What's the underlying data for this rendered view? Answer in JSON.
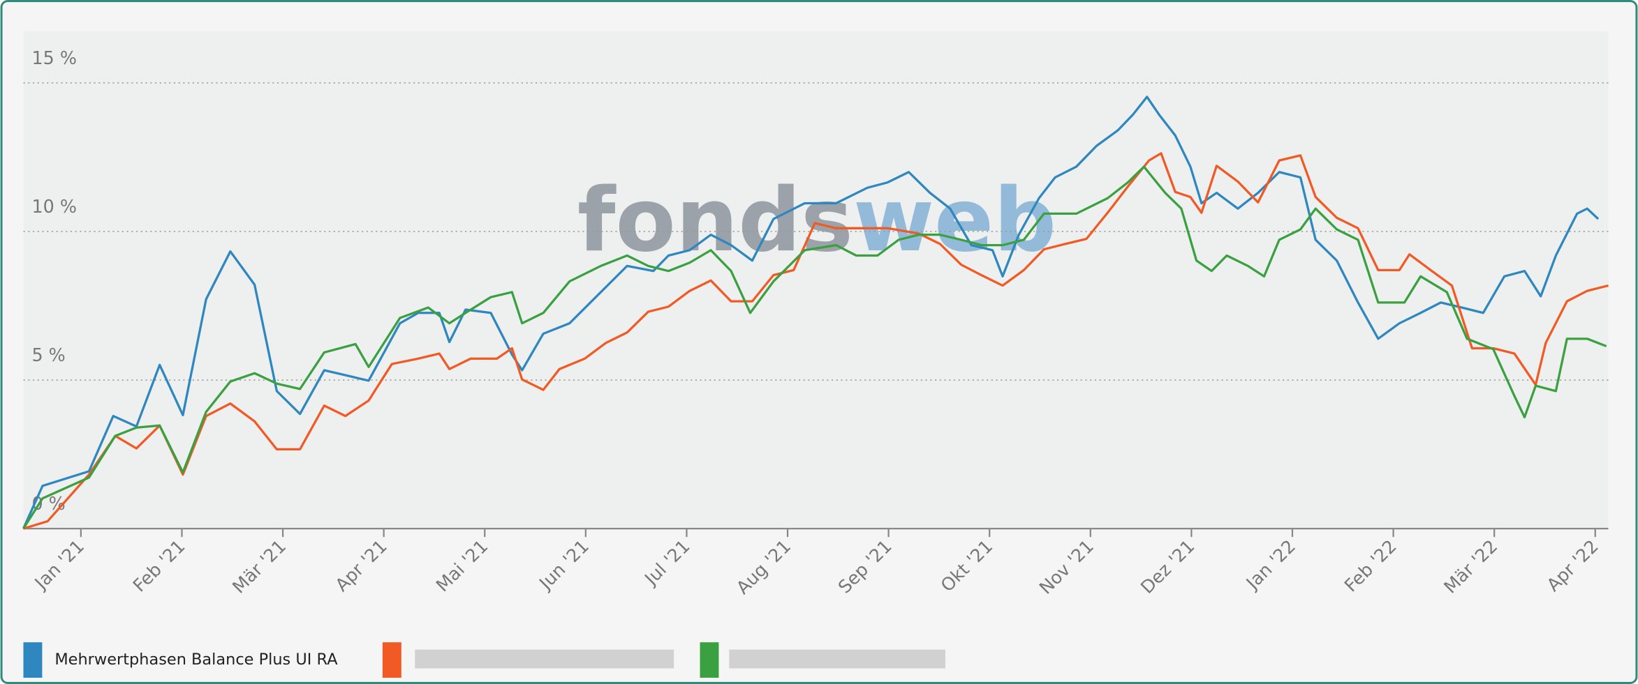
{
  "chart_data": {
    "type": "line",
    "watermark": [
      "fonds",
      "web"
    ],
    "xlim": [
      -0.57,
      15.13
    ],
    "xticks": [
      {
        "value": 0,
        "label": "Jan '21"
      },
      {
        "value": 1,
        "label": "Feb '21"
      },
      {
        "value": 2,
        "label": "Mär '21"
      },
      {
        "value": 3,
        "label": "Apr '21"
      },
      {
        "value": 4,
        "label": "Mai '21"
      },
      {
        "value": 5,
        "label": "Jun '21"
      },
      {
        "value": 6,
        "label": "Jul '21"
      },
      {
        "value": 7,
        "label": "Aug '21"
      },
      {
        "value": 8,
        "label": "Sep '21"
      },
      {
        "value": 9,
        "label": "Okt '21"
      },
      {
        "value": 10,
        "label": "Nov '21"
      },
      {
        "value": 11,
        "label": "Dez '21"
      },
      {
        "value": 12,
        "label": "Jan '22"
      },
      {
        "value": 13,
        "label": "Feb '22"
      },
      {
        "value": 14,
        "label": "Mär '22"
      },
      {
        "value": 15,
        "label": "Apr '22"
      }
    ],
    "ylim": [
      0,
      16
    ],
    "yticks": [
      {
        "value": 0,
        "label": "0 %"
      },
      {
        "value": 5,
        "label": "5 %"
      },
      {
        "value": 10,
        "label": "10 %"
      },
      {
        "value": 15,
        "label": "15 %"
      }
    ],
    "grid": true,
    "series": [
      {
        "name": "Mehrwertphasen Balance Plus UI RA",
        "color": "#2f87c0",
        "x": [
          -0.57,
          -0.38,
          0.08,
          0.32,
          0.55,
          0.78,
          1.01,
          1.24,
          1.48,
          1.72,
          1.94,
          2.17,
          2.41,
          2.85,
          3.16,
          3.34,
          3.55,
          3.65,
          3.81,
          4.06,
          4.27,
          4.37,
          4.58,
          4.84,
          5.15,
          5.41,
          5.67,
          5.82,
          6.03,
          6.24,
          6.44,
          6.65,
          6.86,
          7.17,
          7.48,
          7.79,
          7.99,
          8.2,
          8.41,
          8.61,
          8.82,
          9.03,
          9.13,
          9.29,
          9.49,
          9.65,
          9.86,
          10.06,
          10.27,
          10.42,
          10.56,
          10.68,
          10.84,
          10.99,
          11.1,
          11.25,
          11.46,
          11.66,
          11.87,
          12.08,
          12.23,
          12.44,
          12.65,
          12.85,
          13.06,
          13.27,
          13.47,
          13.68,
          13.89,
          14.1,
          14.3,
          14.46,
          14.61,
          14.82,
          14.92,
          15.03
        ],
        "values": [
          0,
          1.44,
          1.93,
          3.79,
          3.44,
          5.51,
          3.82,
          7.72,
          9.33,
          8.21,
          4.63,
          3.86,
          5.33,
          4.98,
          6.91,
          7.26,
          7.26,
          6.28,
          7.37,
          7.26,
          5.86,
          5.33,
          6.56,
          6.91,
          7.96,
          8.84,
          8.67,
          9.19,
          9.37,
          9.89,
          9.54,
          9.02,
          10.42,
          10.95,
          10.95,
          11.47,
          11.65,
          12.0,
          11.3,
          10.77,
          9.54,
          9.37,
          8.49,
          9.89,
          11.12,
          11.82,
          12.18,
          12.88,
          13.4,
          13.93,
          14.53,
          13.93,
          13.23,
          12.18,
          10.95,
          11.3,
          10.77,
          11.3,
          12.0,
          11.82,
          9.72,
          9.02,
          7.61,
          6.39,
          6.91,
          7.26,
          7.61,
          7.44,
          7.26,
          8.49,
          8.67,
          7.82,
          9.19,
          10.6,
          10.77,
          10.42
        ]
      },
      {
        "color": "#f15a24",
        "x": [
          -0.57,
          -0.33,
          0.08,
          0.34,
          0.55,
          0.78,
          1.01,
          1.24,
          1.48,
          1.72,
          1.94,
          2.17,
          2.41,
          2.62,
          2.85,
          3.08,
          3.34,
          3.55,
          3.65,
          3.86,
          4.12,
          4.27,
          4.37,
          4.58,
          4.74,
          4.99,
          5.2,
          5.41,
          5.62,
          5.82,
          6.03,
          6.24,
          6.44,
          6.65,
          6.86,
          7.06,
          7.27,
          7.48,
          7.68,
          7.99,
          8.3,
          8.51,
          8.72,
          8.92,
          9.13,
          9.34,
          9.54,
          9.75,
          9.96,
          10.17,
          10.37,
          10.58,
          10.7,
          10.84,
          10.99,
          11.1,
          11.25,
          11.46,
          11.66,
          11.87,
          12.08,
          12.23,
          12.44,
          12.65,
          12.85,
          13.06,
          13.16,
          13.37,
          13.58,
          13.78,
          13.99,
          14.2,
          14.41,
          14.51,
          14.72,
          14.92,
          15.13
        ],
        "values": [
          0,
          0.25,
          1.82,
          3.12,
          2.7,
          3.47,
          1.82,
          3.79,
          4.21,
          3.61,
          2.67,
          2.67,
          4.14,
          3.79,
          4.31,
          5.54,
          5.72,
          5.89,
          5.37,
          5.72,
          5.72,
          6.07,
          5.02,
          4.67,
          5.37,
          5.72,
          6.25,
          6.6,
          7.3,
          7.47,
          8.0,
          8.35,
          7.65,
          7.65,
          8.53,
          8.7,
          10.28,
          10.11,
          10.11,
          10.11,
          9.93,
          9.58,
          8.88,
          8.53,
          8.18,
          8.7,
          9.4,
          9.58,
          9.75,
          10.63,
          11.51,
          12.39,
          12.63,
          11.33,
          11.16,
          10.63,
          12.21,
          11.68,
          10.98,
          12.39,
          12.56,
          11.16,
          10.46,
          10.11,
          8.7,
          8.7,
          9.23,
          8.7,
          8.18,
          6.07,
          6.07,
          5.89,
          4.84,
          6.25,
          7.65,
          8.0,
          8.18
        ]
      },
      {
        "color": "#3aa040",
        "x": [
          -0.57,
          -0.38,
          0.08,
          0.34,
          0.55,
          0.78,
          1.01,
          1.24,
          1.48,
          1.72,
          1.94,
          2.17,
          2.41,
          2.72,
          2.85,
          3.16,
          3.44,
          3.65,
          3.81,
          4.06,
          4.27,
          4.37,
          4.58,
          4.84,
          5.15,
          5.41,
          5.62,
          5.82,
          6.03,
          6.24,
          6.44,
          6.63,
          6.86,
          7.17,
          7.48,
          7.68,
          7.89,
          8.1,
          8.3,
          8.51,
          8.72,
          8.92,
          9.13,
          9.34,
          9.54,
          9.86,
          10.17,
          10.37,
          10.53,
          10.74,
          10.9,
          11.05,
          11.2,
          11.35,
          11.56,
          11.72,
          11.87,
          12.08,
          12.23,
          12.44,
          12.65,
          12.85,
          13.11,
          13.27,
          13.53,
          13.73,
          13.99,
          14.2,
          14.3,
          14.41,
          14.61,
          14.72,
          14.92,
          15.11
        ],
        "values": [
          0,
          1.02,
          1.72,
          3.12,
          3.4,
          3.47,
          1.89,
          3.93,
          4.95,
          5.23,
          4.88,
          4.7,
          5.93,
          6.21,
          5.44,
          7.09,
          7.44,
          6.91,
          7.26,
          7.79,
          7.96,
          6.91,
          7.26,
          8.32,
          8.84,
          9.19,
          8.84,
          8.67,
          8.95,
          9.37,
          8.67,
          7.26,
          8.32,
          9.37,
          9.54,
          9.19,
          9.19,
          9.72,
          9.89,
          9.89,
          9.72,
          9.54,
          9.54,
          9.72,
          10.6,
          10.6,
          11.12,
          11.65,
          12.18,
          11.3,
          10.77,
          9.02,
          8.67,
          9.19,
          8.84,
          8.49,
          9.72,
          10.07,
          10.77,
          10.07,
          9.72,
          7.61,
          7.61,
          8.49,
          7.96,
          6.39,
          6.04,
          4.46,
          3.75,
          4.81,
          4.63,
          6.39,
          6.39,
          6.14
        ]
      }
    ]
  }
}
